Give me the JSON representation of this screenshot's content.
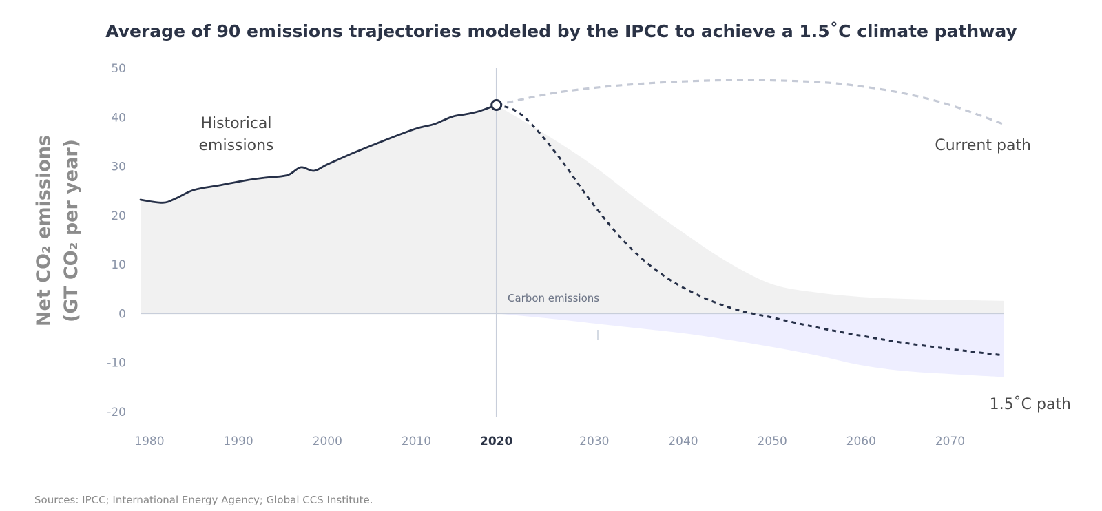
{
  "chart_data": {
    "type": "line",
    "title": "Average of 90 emissions trajectories modeled by the IPCC to achieve a 1.5˚C climate pathway",
    "ylabel_line1": "Net CO₂ emissions",
    "ylabel_line2": "(GT CO₂ per year)",
    "xlim": [
      1979,
      2076
    ],
    "ylim": [
      -20,
      50
    ],
    "x_ticks": [
      "1980",
      "1990",
      "2000",
      "2010",
      "2020",
      "2030",
      "2040",
      "2050",
      "2060",
      "2070"
    ],
    "y_ticks": [
      "50",
      "40",
      "30",
      "20",
      "10",
      "0",
      "-10",
      "-20"
    ],
    "highlight_tick": "2020",
    "grid": false,
    "annotations": {
      "historical_line1": "Historical",
      "historical_line2": "emissions",
      "current_path": "Current path",
      "path_15": "1.5˚C path",
      "carbon_emissions": "Carbon emissions"
    },
    "source": "Sources: IPCC; International Energy Agency; Global CCS Institute.",
    "colors": {
      "historical": "#263048",
      "gray_band": "#f1f1f1",
      "removal_band": "#eeeeff",
      "current_path": "#c5cad6",
      "axis": "#c8ceda"
    },
    "series": [
      {
        "name": "Historical emissions",
        "style": "solid",
        "x": [
          1979,
          1981.5,
          1983,
          1985,
          1988,
          1991,
          1993,
          1995.5,
          1997,
          1998.5,
          2000,
          2003,
          2007,
          2010,
          2012,
          2014,
          2015.5,
          2017,
          2019
        ],
        "y": [
          23.2,
          22.6,
          23.5,
          25.2,
          26.2,
          27.2,
          27.7,
          28.2,
          29.8,
          29.1,
          30.4,
          32.8,
          35.7,
          37.7,
          38.6,
          40.1,
          40.6,
          41.2,
          42.5
        ]
      },
      {
        "name": "Current path",
        "style": "dashed",
        "x": [
          2019,
          2025,
          2030,
          2035,
          2040,
          2047,
          2055,
          2060,
          2065,
          2070,
          2076
        ],
        "y": [
          42.5,
          44.8,
          46,
          46.8,
          47.3,
          47.6,
          47.2,
          46.3,
          44.8,
          42.5,
          38.6
        ]
      },
      {
        "name": "1.5˚C path",
        "style": "dashed",
        "x": [
          2019,
          2021,
          2023,
          2026,
          2030,
          2034,
          2038,
          2042,
          2046,
          2050,
          2055,
          2060,
          2065,
          2070,
          2076
        ],
        "y": [
          42.5,
          41.5,
          38.5,
          32,
          22,
          13.5,
          7.5,
          3.5,
          0.8,
          -0.8,
          -2.8,
          -4.5,
          -6,
          -7.2,
          -8.5
        ]
      }
    ],
    "bands": [
      {
        "name": "Net emissions range",
        "x": [
          2019,
          2025,
          2030,
          2035,
          2040,
          2045,
          2050,
          2055,
          2060,
          2065,
          2070,
          2076
        ],
        "upper": [
          42.5,
          36,
          30,
          23,
          16.5,
          10.5,
          6,
          4.3,
          3.4,
          3,
          2.8,
          2.6
        ],
        "lower": [
          0,
          0,
          0,
          0,
          0,
          0,
          0,
          0,
          0,
          0,
          0,
          0
        ]
      },
      {
        "name": "Carbon removal range",
        "x": [
          2019,
          2025,
          2030,
          2035,
          2040,
          2045,
          2050,
          2055,
          2060,
          2065,
          2070,
          2076
        ],
        "upper": [
          0,
          0,
          0,
          0,
          0,
          0,
          0,
          0,
          0,
          0,
          0,
          0
        ],
        "lower": [
          0,
          -1,
          -2,
          -3,
          -4,
          -5.3,
          -6.8,
          -8.5,
          -10.5,
          -11.7,
          -12.3,
          -12.9
        ]
      }
    ]
  }
}
